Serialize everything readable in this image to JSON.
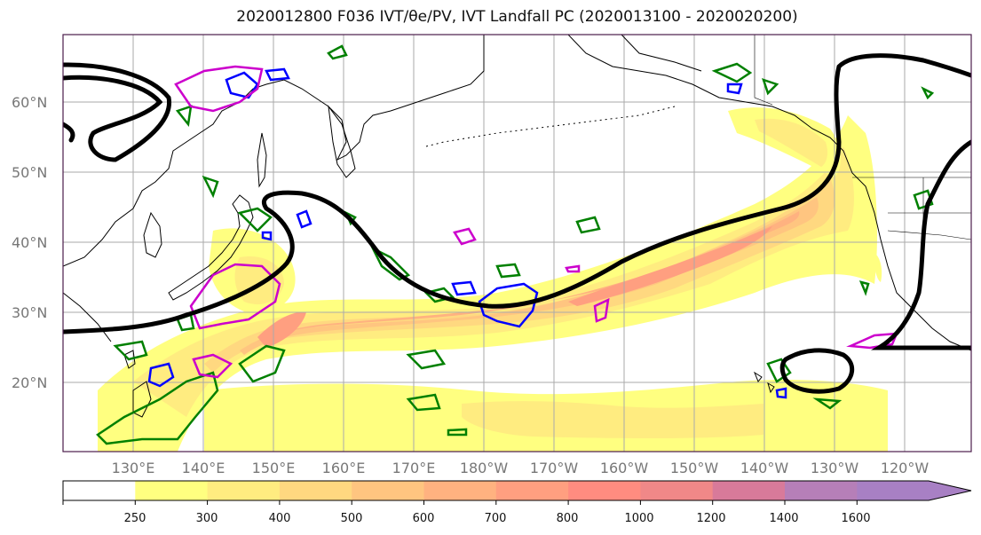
{
  "title": "2020012800 F036 IVT/θe/PV, IVT Landfall PC (2020013100 - 2020020200)",
  "lat_labels": [
    "60°N",
    "50°N",
    "40°N",
    "30°N",
    "20°N"
  ],
  "lon_labels": [
    "130°E",
    "140°E",
    "150°E",
    "160°E",
    "170°E",
    "180°W",
    "170°W",
    "160°W",
    "150°W",
    "140°W",
    "130°W",
    "120°W"
  ],
  "colorbar": {
    "ticks": [
      "250",
      "300",
      "400",
      "500",
      "600",
      "700",
      "800",
      "1000",
      "1200",
      "1400",
      "1600"
    ],
    "colors": [
      "#ffffff",
      "#ffff80",
      "#ffec80",
      "#ffd880",
      "#ffc580",
      "#ffb280",
      "#ff9f80",
      "#ff8c80",
      "#f08888",
      "#d87a9a",
      "#b67fb8",
      "#a880c4"
    ]
  },
  "contour_colors": {
    "pc_line": "#000000",
    "theta_e": "#008000",
    "pv_blue": "#0000ff",
    "pv_magenta": "#cc00cc"
  }
}
